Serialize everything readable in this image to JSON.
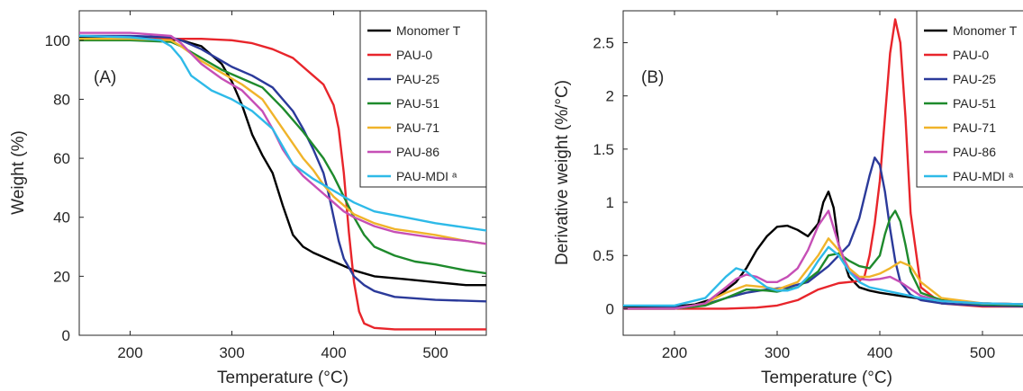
{
  "chart_data": [
    {
      "type": "line",
      "panel_label": "(A)",
      "xlabel": "Temperature (°C)",
      "ylabel": "Weight (%)",
      "xlim": [
        150,
        550
      ],
      "ylim": [
        0,
        110
      ],
      "xticks": [
        200,
        300,
        400,
        500
      ],
      "yticks": [
        0,
        20,
        40,
        60,
        80,
        100
      ],
      "grid": false,
      "legend_position": "top-right",
      "series": [
        {
          "name": "Monomer T",
          "color": "#000000",
          "x": [
            150,
            200,
            230,
            250,
            270,
            290,
            300,
            310,
            320,
            330,
            340,
            350,
            360,
            370,
            380,
            400,
            420,
            440,
            470,
            500,
            530,
            550
          ],
          "y": [
            101,
            101,
            100.5,
            100,
            98,
            92,
            86,
            78,
            68,
            61,
            55,
            44,
            34,
            30,
            28,
            25,
            22,
            20,
            19,
            18,
            17,
            17
          ]
        },
        {
          "name": "PAU-0",
          "color": "#e8252b",
          "x": [
            150,
            200,
            250,
            270,
            300,
            320,
            340,
            360,
            370,
            380,
            390,
            400,
            405,
            410,
            415,
            420,
            425,
            430,
            440,
            460,
            500,
            550
          ],
          "y": [
            100.5,
            100.5,
            100.5,
            100.5,
            100,
            99,
            97,
            94,
            91,
            88,
            85,
            78,
            70,
            55,
            35,
            18,
            8,
            4,
            2.5,
            2,
            2,
            2
          ]
        },
        {
          "name": "PAU-25",
          "color": "#2b3a9a",
          "x": [
            150,
            200,
            240,
            250,
            270,
            290,
            300,
            320,
            340,
            360,
            370,
            380,
            390,
            395,
            400,
            405,
            410,
            420,
            430,
            440,
            460,
            500,
            550
          ],
          "y": [
            101.5,
            101.5,
            101,
            100,
            97,
            93,
            91,
            88,
            84,
            76,
            70,
            63,
            55,
            48,
            40,
            32,
            26,
            20,
            17,
            15,
            13,
            12,
            11.5
          ]
        },
        {
          "name": "PAU-51",
          "color": "#1e8a2c",
          "x": [
            150,
            200,
            240,
            250,
            270,
            290,
            310,
            330,
            350,
            370,
            390,
            400,
            410,
            420,
            430,
            440,
            460,
            480,
            500,
            530,
            550
          ],
          "y": [
            100,
            100,
            99.5,
            98,
            94,
            90,
            87,
            84,
            77,
            69,
            60,
            54,
            47,
            40,
            34,
            30,
            27,
            25,
            24,
            22,
            21
          ]
        },
        {
          "name": "PAU-71",
          "color": "#f0b42a",
          "x": [
            150,
            200,
            240,
            250,
            270,
            290,
            310,
            330,
            350,
            360,
            370,
            380,
            390,
            400,
            410,
            420,
            440,
            460,
            480,
            500,
            530,
            550
          ],
          "y": [
            100.5,
            100.5,
            100,
            98,
            93,
            89,
            85,
            80,
            70,
            65,
            60,
            56,
            51,
            47,
            44,
            41,
            38,
            36,
            35,
            34,
            32,
            31
          ]
        },
        {
          "name": "PAU-86",
          "color": "#c64fb6",
          "x": [
            150,
            200,
            240,
            250,
            270,
            290,
            310,
            330,
            340,
            350,
            360,
            370,
            380,
            390,
            400,
            410,
            420,
            440,
            460,
            480,
            500,
            530,
            550
          ],
          "y": [
            102.5,
            102.5,
            101.5,
            99,
            92,
            87,
            83,
            76,
            70,
            63,
            58,
            54,
            51,
            48,
            45,
            42,
            40,
            37,
            35,
            34,
            33,
            32,
            31
          ]
        },
        {
          "name": "PAU-MDI ᵃ",
          "color": "#2ebae8",
          "x": [
            150,
            200,
            230,
            240,
            250,
            260,
            280,
            300,
            320,
            340,
            350,
            360,
            380,
            400,
            420,
            440,
            470,
            500,
            530,
            550
          ],
          "y": [
            101.5,
            101,
            100,
            98,
            94,
            88,
            83,
            80,
            76,
            70,
            64,
            58,
            53,
            49,
            45,
            42,
            40,
            38,
            36.5,
            35.5
          ]
        }
      ]
    },
    {
      "type": "line",
      "panel_label": "(B)",
      "xlabel": "Temperature (°C)",
      "ylabel": "Derivative weight (%/°C)",
      "xlim": [
        150,
        550
      ],
      "ylim": [
        -0.25,
        2.8
      ],
      "xticks": [
        200,
        300,
        400,
        500
      ],
      "yticks": [
        0,
        0.5,
        1,
        1.5,
        2,
        2.5
      ],
      "ytick_labels": [
        "0",
        "0.5",
        "1",
        "1.5",
        "2",
        "2.5"
      ],
      "grid": false,
      "legend_position": "top-right",
      "series": [
        {
          "name": "Monomer T",
          "color": "#000000",
          "x": [
            150,
            200,
            220,
            240,
            260,
            270,
            280,
            290,
            300,
            310,
            320,
            330,
            340,
            345,
            350,
            355,
            360,
            370,
            380,
            390,
            400,
            420,
            450,
            500,
            550
          ],
          "y": [
            0.02,
            0.02,
            0.04,
            0.1,
            0.25,
            0.38,
            0.55,
            0.68,
            0.77,
            0.78,
            0.74,
            0.68,
            0.8,
            1.0,
            1.1,
            0.95,
            0.6,
            0.3,
            0.2,
            0.17,
            0.15,
            0.12,
            0.08,
            0.05,
            0.04
          ]
        },
        {
          "name": "PAU-0",
          "color": "#e8252b",
          "x": [
            150,
            200,
            250,
            280,
            300,
            320,
            340,
            360,
            370,
            380,
            385,
            390,
            395,
            400,
            405,
            410,
            415,
            420,
            425,
            430,
            440,
            460,
            500,
            550
          ],
          "y": [
            0,
            0,
            0,
            0.01,
            0.03,
            0.08,
            0.18,
            0.24,
            0.25,
            0.26,
            0.3,
            0.5,
            0.8,
            1.2,
            1.8,
            2.4,
            2.72,
            2.5,
            1.8,
            0.9,
            0.2,
            0.05,
            0.02,
            0.02
          ]
        },
        {
          "name": "PAU-25",
          "color": "#2b3a9a",
          "x": [
            150,
            200,
            230,
            250,
            270,
            290,
            310,
            330,
            350,
            360,
            370,
            380,
            390,
            395,
            400,
            405,
            410,
            415,
            420,
            430,
            440,
            460,
            500,
            550
          ],
          "y": [
            0,
            0.01,
            0.04,
            0.1,
            0.15,
            0.18,
            0.2,
            0.25,
            0.4,
            0.5,
            0.6,
            0.85,
            1.25,
            1.42,
            1.35,
            1.1,
            0.75,
            0.45,
            0.25,
            0.13,
            0.08,
            0.05,
            0.03,
            0.02
          ]
        },
        {
          "name": "PAU-51",
          "color": "#1e8a2c",
          "x": [
            150,
            200,
            230,
            250,
            270,
            290,
            300,
            320,
            340,
            350,
            360,
            370,
            380,
            390,
            400,
            405,
            410,
            415,
            420,
            425,
            430,
            440,
            460,
            500,
            550
          ],
          "y": [
            0,
            0,
            0.03,
            0.1,
            0.18,
            0.17,
            0.16,
            0.2,
            0.35,
            0.5,
            0.52,
            0.45,
            0.4,
            0.38,
            0.5,
            0.7,
            0.85,
            0.92,
            0.82,
            0.6,
            0.35,
            0.15,
            0.08,
            0.04,
            0.03
          ]
        },
        {
          "name": "PAU-71",
          "color": "#f0b42a",
          "x": [
            150,
            200,
            230,
            250,
            270,
            290,
            300,
            320,
            340,
            350,
            360,
            370,
            380,
            390,
            400,
            410,
            420,
            430,
            440,
            460,
            500,
            550
          ],
          "y": [
            0,
            0,
            0.05,
            0.15,
            0.22,
            0.2,
            0.18,
            0.25,
            0.5,
            0.66,
            0.55,
            0.38,
            0.3,
            0.3,
            0.33,
            0.38,
            0.44,
            0.4,
            0.25,
            0.1,
            0.05,
            0.04
          ]
        },
        {
          "name": "PAU-86",
          "color": "#c64fb6",
          "x": [
            150,
            200,
            230,
            250,
            260,
            270,
            280,
            290,
            300,
            310,
            320,
            330,
            340,
            350,
            360,
            370,
            380,
            390,
            400,
            410,
            420,
            440,
            460,
            500,
            550
          ],
          "y": [
            0,
            0,
            0.05,
            0.2,
            0.28,
            0.32,
            0.3,
            0.25,
            0.25,
            0.3,
            0.38,
            0.55,
            0.78,
            0.92,
            0.6,
            0.35,
            0.28,
            0.27,
            0.28,
            0.3,
            0.25,
            0.12,
            0.07,
            0.05,
            0.04
          ]
        },
        {
          "name": "PAU-MDI ᵃ",
          "color": "#2ebae8",
          "x": [
            150,
            200,
            230,
            250,
            260,
            270,
            280,
            290,
            300,
            310,
            320,
            330,
            340,
            350,
            360,
            370,
            380,
            390,
            400,
            420,
            440,
            460,
            500,
            550
          ],
          "y": [
            0.03,
            0.03,
            0.1,
            0.3,
            0.38,
            0.35,
            0.27,
            0.2,
            0.17,
            0.17,
            0.2,
            0.3,
            0.45,
            0.58,
            0.5,
            0.35,
            0.25,
            0.2,
            0.18,
            0.14,
            0.1,
            0.07,
            0.05,
            0.04
          ]
        }
      ]
    }
  ]
}
